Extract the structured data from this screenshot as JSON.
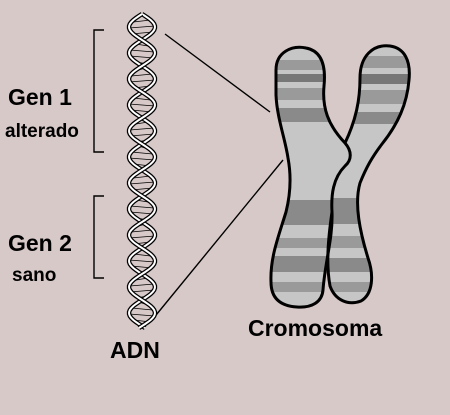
{
  "labels": {
    "gene1_title": "Gen 1",
    "gene1_state": "alterado",
    "gene2_title": "Gen 2",
    "gene2_state": "sano",
    "dna": "ADN",
    "chromosome": "Cromosoma"
  },
  "colors": {
    "background": "#d8c9c9",
    "outline": "#000000",
    "chromosome_light": "#c6c6c6",
    "chromosome_mid": "#9a9a9a",
    "chromosome_dark": "#777777",
    "dna_fill": "#ffffff"
  }
}
